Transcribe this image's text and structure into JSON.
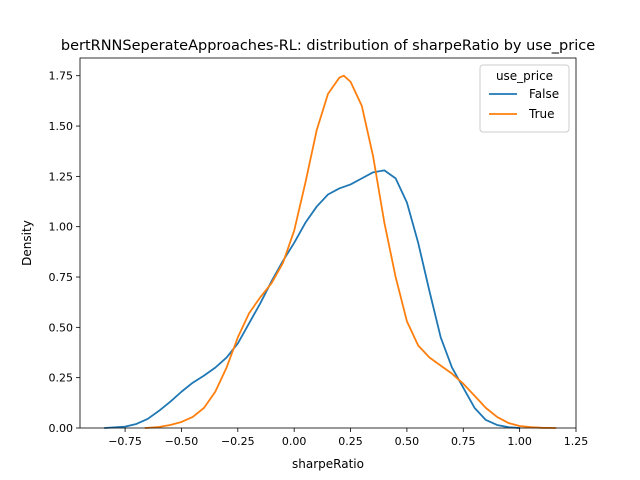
{
  "chart_data": {
    "type": "line",
    "title": "bertRNNSeperateApproaches-RL: distribution of sharpeRatio by use_price",
    "xlabel": "sharpeRatio",
    "ylabel": "Density",
    "xlim": [
      -0.95,
      1.25
    ],
    "ylim": [
      0,
      1.838
    ],
    "xticks": [
      -0.75,
      -0.5,
      -0.25,
      0.0,
      0.25,
      0.5,
      0.75,
      1.0,
      1.25
    ],
    "xtick_labels": [
      "−0.75",
      "−0.50",
      "−0.25",
      "0.00",
      "0.25",
      "0.50",
      "0.75",
      "1.00",
      "1.25"
    ],
    "yticks": [
      0.0,
      0.25,
      0.5,
      0.75,
      1.0,
      1.25,
      1.5,
      1.75
    ],
    "ytick_labels": [
      "0.00",
      "0.25",
      "0.50",
      "0.75",
      "1.00",
      "1.25",
      "1.50",
      "1.75"
    ],
    "grid": false,
    "legend": {
      "title": "use_price",
      "placement": "top-right",
      "entries": [
        "False",
        "True"
      ]
    },
    "series": [
      {
        "name": "False",
        "color": "#1f77b4",
        "x": [
          -0.84,
          -0.75,
          -0.7,
          -0.65,
          -0.6,
          -0.55,
          -0.5,
          -0.45,
          -0.4,
          -0.35,
          -0.3,
          -0.25,
          -0.2,
          -0.15,
          -0.1,
          -0.05,
          0.0,
          0.05,
          0.1,
          0.15,
          0.2,
          0.25,
          0.3,
          0.35,
          0.4,
          0.45,
          0.5,
          0.55,
          0.6,
          0.65,
          0.7,
          0.75,
          0.8,
          0.85,
          0.9,
          0.95,
          1.0
        ],
        "y": [
          0.0,
          0.007,
          0.02,
          0.045,
          0.085,
          0.13,
          0.18,
          0.225,
          0.26,
          0.3,
          0.35,
          0.42,
          0.52,
          0.62,
          0.73,
          0.83,
          0.92,
          1.02,
          1.1,
          1.16,
          1.19,
          1.21,
          1.24,
          1.27,
          1.28,
          1.24,
          1.12,
          0.92,
          0.68,
          0.45,
          0.3,
          0.2,
          0.1,
          0.04,
          0.015,
          0.004,
          0.0
        ]
      },
      {
        "name": "True",
        "color": "#ff7f0e",
        "x": [
          -0.66,
          -0.6,
          -0.55,
          -0.5,
          -0.45,
          -0.4,
          -0.35,
          -0.3,
          -0.25,
          -0.2,
          -0.15,
          -0.1,
          -0.05,
          0.0,
          0.05,
          0.1,
          0.15,
          0.2,
          0.22,
          0.25,
          0.3,
          0.35,
          0.4,
          0.45,
          0.5,
          0.55,
          0.6,
          0.65,
          0.7,
          0.75,
          0.8,
          0.85,
          0.9,
          0.95,
          1.0,
          1.05,
          1.1,
          1.16
        ],
        "y": [
          0.0,
          0.005,
          0.015,
          0.03,
          0.055,
          0.1,
          0.18,
          0.3,
          0.45,
          0.57,
          0.65,
          0.72,
          0.82,
          0.98,
          1.22,
          1.48,
          1.66,
          1.74,
          1.75,
          1.72,
          1.6,
          1.35,
          1.02,
          0.75,
          0.53,
          0.41,
          0.35,
          0.31,
          0.27,
          0.22,
          0.16,
          0.1,
          0.055,
          0.025,
          0.01,
          0.004,
          0.001,
          0.0
        ]
      }
    ]
  }
}
